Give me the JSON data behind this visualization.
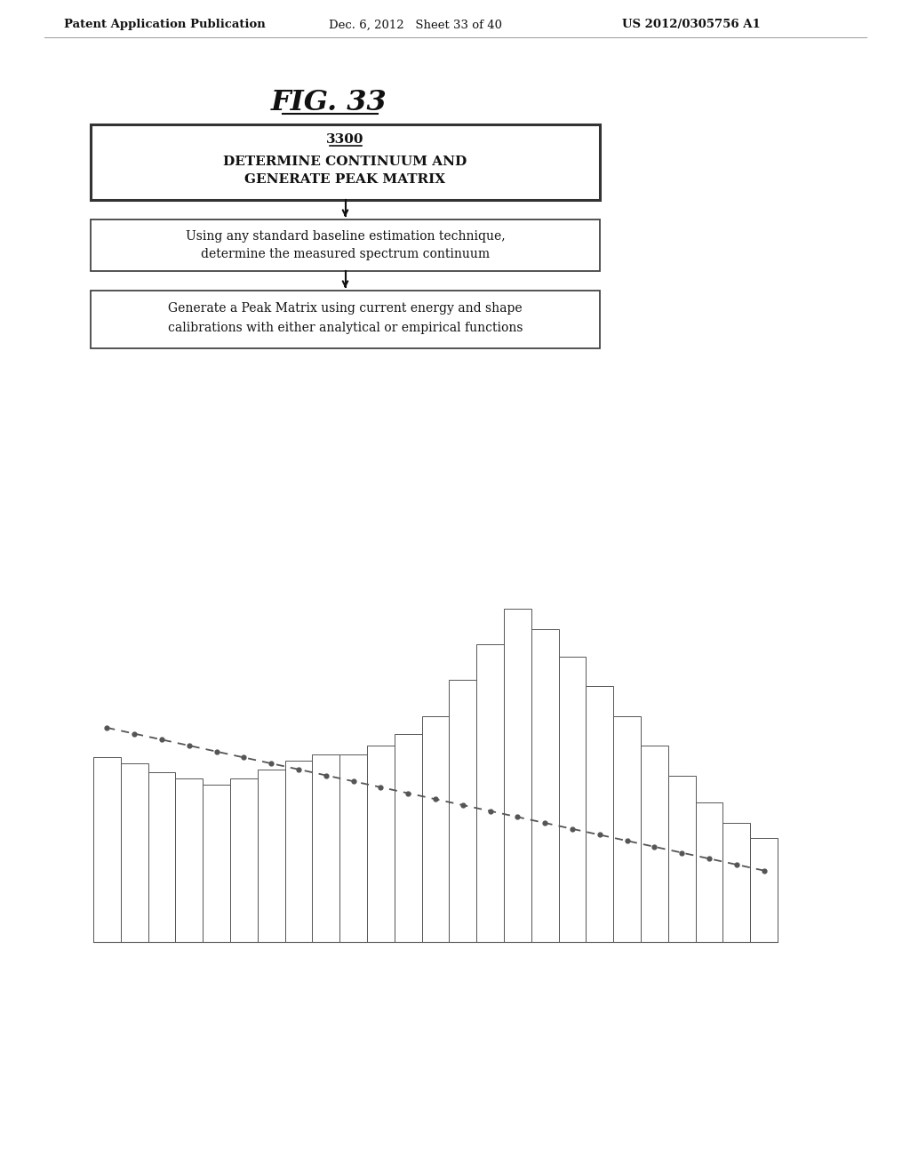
{
  "header_left": "Patent Application Publication",
  "header_mid": "Dec. 6, 2012   Sheet 33 of 40",
  "header_right": "US 2012/0305756 A1",
  "fig_title": "FIG. 33",
  "box1_line1": "3300",
  "box1_line2": "DETERMINE CONTINUUM AND",
  "box1_line3": "GENERATE PEAK MATRIX",
  "box2_line1": "Using any standard baseline estimation technique,",
  "box2_line2": "determine the measured spectrum continuum",
  "box3_line1": "Generate a Peak Matrix using current energy and shape",
  "box3_line2": "calibrations with either analytical or empirical functions",
  "bar_heights": [
    62,
    60,
    57,
    55,
    53,
    55,
    58,
    61,
    63,
    63,
    66,
    70,
    76,
    88,
    100,
    112,
    105,
    96,
    86,
    76,
    66,
    56,
    47,
    40,
    35
  ],
  "continuum": [
    72,
    70,
    68,
    66,
    64,
    62,
    60,
    58,
    56,
    54,
    52,
    50,
    48,
    46,
    44,
    42,
    40,
    38,
    36,
    34,
    32,
    30,
    28,
    26,
    24
  ],
  "bg_color": "#ffffff",
  "bar_face": "#ffffff",
  "bar_edge": "#555555",
  "dash_color": "#555555",
  "text_color": "#111111",
  "box_edge": "#555555"
}
